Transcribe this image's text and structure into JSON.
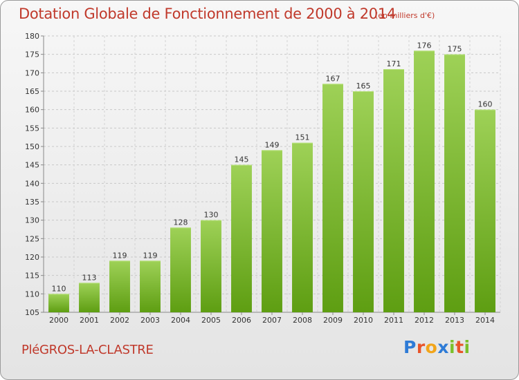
{
  "header": {
    "title": "Dotation Globale de Fonctionnement de 2000 à 2014",
    "unit": "(en milliers d'€)"
  },
  "footer": {
    "commune": "PléGROS-LA-CLASTRE",
    "brand": {
      "text": "Proxiti",
      "letters": [
        "P",
        "r",
        "o",
        "x",
        "i",
        "t",
        "i"
      ],
      "colors": [
        "#2e7bd6",
        "#e8542a",
        "#f2a51a",
        "#2e7bd6",
        "#7bbf2a",
        "#e8542a",
        "#7bbf2a"
      ]
    }
  },
  "colors": {
    "bar_top": "#9ed157",
    "bar_bottom": "#5e9e12",
    "text_red": "#c0392b"
  },
  "chart_data": {
    "type": "bar",
    "title": "Dotation Globale de Fonctionnement de 2000 à 2014",
    "categories": [
      "2000",
      "2001",
      "2002",
      "2003",
      "2004",
      "2005",
      "2006",
      "2007",
      "2008",
      "2009",
      "2010",
      "2011",
      "2012",
      "2013",
      "2014"
    ],
    "values": [
      110,
      113,
      119,
      119,
      128,
      130,
      145,
      149,
      151,
      167,
      165,
      171,
      176,
      175,
      160
    ],
    "ylim": [
      105,
      180
    ],
    "yticks": [
      105,
      110,
      115,
      120,
      125,
      130,
      135,
      140,
      145,
      150,
      155,
      160,
      165,
      170,
      175,
      180
    ],
    "xlabel": "",
    "ylabel": "",
    "grid": true,
    "data_labels": true
  }
}
